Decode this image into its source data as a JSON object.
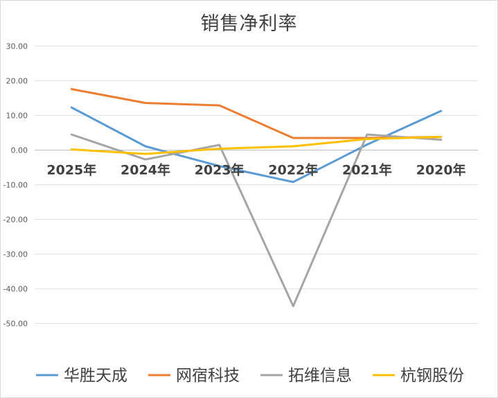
{
  "chart_data": {
    "type": "line",
    "title": "销售净利率",
    "xlabel": "",
    "ylabel": "",
    "categories": [
      "2025年",
      "2024年",
      "2023年",
      "2022年",
      "2021年",
      "2020年"
    ],
    "yticks": [
      "30.00",
      "20.00",
      "10.00",
      "0.00",
      "-10.00",
      "-20.00",
      "-30.00",
      "-40.00",
      "-50.00"
    ],
    "ylim": [
      -50,
      30
    ],
    "grid": true,
    "legend_position": "bottom",
    "series": [
      {
        "name": "华胜天成",
        "color": "#5b9bd5",
        "values": [
          12.3,
          1.1,
          -4.6,
          -9.2,
          1.6,
          11.3
        ]
      },
      {
        "name": "网宿科技",
        "color": "#ed7d31",
        "values": [
          17.6,
          13.6,
          12.9,
          3.5,
          3.5,
          3.8
        ]
      },
      {
        "name": "拓维信息",
        "color": "#a5a5a5",
        "values": [
          4.5,
          -2.7,
          1.5,
          -45.0,
          4.5,
          3.0
        ]
      },
      {
        "name": "杭钢股份",
        "color": "#ffc000",
        "values": [
          0.2,
          -1.1,
          0.4,
          1.1,
          3.2,
          3.8
        ]
      }
    ]
  }
}
